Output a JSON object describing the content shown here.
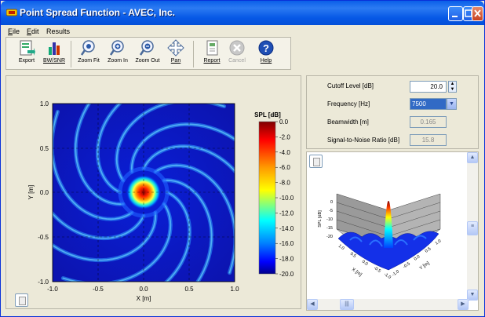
{
  "window": {
    "title": "Point Spread Function - AVEC, Inc."
  },
  "menu": [
    {
      "key": "E",
      "rest": "ile"
    },
    {
      "key": "E",
      "rest": "dit"
    },
    {
      "key": "",
      "rest": "Results"
    }
  ],
  "toolbar": {
    "export": "Export",
    "bwsnr": "BW/SNR",
    "zoomfit": "Zoom Fit",
    "zoomin": "Zoom In",
    "zoomout": "Zoom Out",
    "pan": "Pan",
    "report": "Report",
    "cancel": "Cancel",
    "help": "Help"
  },
  "plot": {
    "ylabel": "Y [m]",
    "xlabel": "X [m]",
    "xticks": [
      "-1.0",
      "-0.5",
      "0.0",
      "0.5",
      "1.0"
    ],
    "yticks": [
      "1.0",
      "0.5",
      "0.0",
      "-0.5",
      "-1.0"
    ]
  },
  "colorbar": {
    "title": "SPL [dB]",
    "ticks": [
      "0.0",
      "-2.0",
      "-4.0",
      "-6.0",
      "-8.0",
      "-10.0",
      "-12.0",
      "-14.0",
      "-16.0",
      "-18.0",
      "-20.0"
    ]
  },
  "params": {
    "cutoff_label": "Cutoff Level [dB]",
    "cutoff_value": "20.0",
    "frequency_label": "Frequency [Hz]",
    "frequency_value": "7500",
    "beamwidth_label": "Beamwidth [m]",
    "beamwidth_value": "0.165",
    "snr_label": "Signal-to-Noise Ratio [dB]",
    "snr_value": "15.8"
  },
  "surface": {
    "zlabel": "SPL [dB]",
    "zticks": [
      "0",
      "-5",
      "-10",
      "-15",
      "-20"
    ],
    "xlabel": "X [m]",
    "ylabel": "Y [m]",
    "xticks": [
      "1.0",
      "0.5",
      "0.0",
      "-0.5",
      "-1.0"
    ],
    "yticks": [
      "-1.0",
      "-0.5",
      "0.0",
      "0.5",
      "1.0"
    ]
  },
  "colors": {
    "accent": "#0A5FE8",
    "spl_max": "#8B0000",
    "spl_min": "#00008B"
  }
}
